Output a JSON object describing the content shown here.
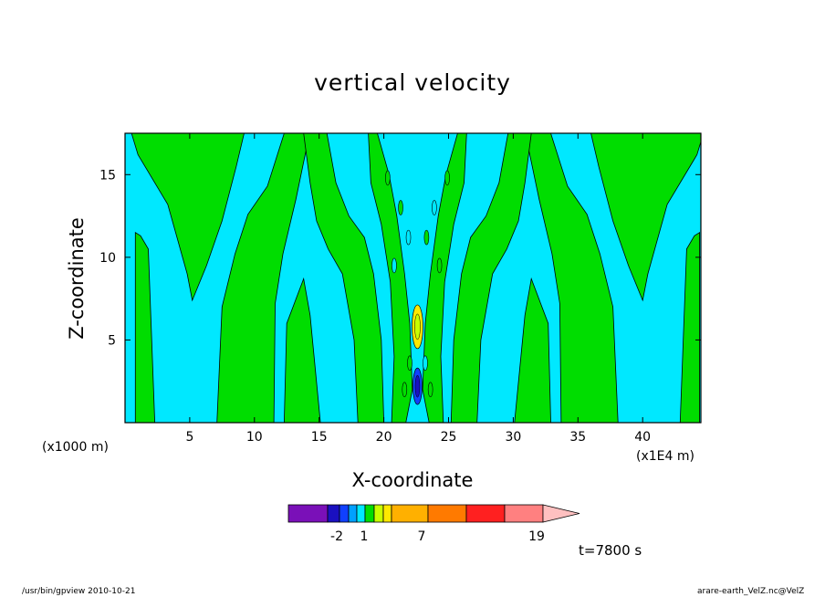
{
  "chart_data": {
    "type": "contour",
    "title": "vertical velocity",
    "xlabel": "X-coordinate",
    "ylabel": "Z-coordinate",
    "x_unit_left": "(x1000 m)",
    "x_unit_right": "(x1E4 m)",
    "xlim": [
      0,
      44.5
    ],
    "ylim": [
      0,
      17.5
    ],
    "x_ticks": [
      5,
      10,
      15,
      20,
      25,
      30,
      35,
      40
    ],
    "y_ticks": [
      5,
      10,
      15
    ],
    "x_tick_labels": [
      "5",
      "10",
      "15",
      "20",
      "25",
      "30",
      "35",
      "40"
    ],
    "y_tick_labels": [
      "5",
      "10",
      "15"
    ],
    "background_level_color": "#00e8ff",
    "positive_level_color": "#00dd00",
    "center_x": 22.6,
    "colorbar": {
      "labels": [
        "-2",
        "1",
        "7",
        "19"
      ],
      "colors": [
        "#7a10b8",
        "#1a10c0",
        "#1040ff",
        "#00a0ff",
        "#00e8ff",
        "#00dd00",
        "#c8ff00",
        "#ffe800",
        "#ffb000",
        "#ff7a00",
        "#ff2020",
        "#ff8080",
        "#ffc0c0"
      ]
    },
    "time_label": "t=7800 s"
  },
  "footer": {
    "left": "/usr/bin/gpview   2010-10-21",
    "right": "arare-earth_VelZ.nc@VelZ"
  }
}
